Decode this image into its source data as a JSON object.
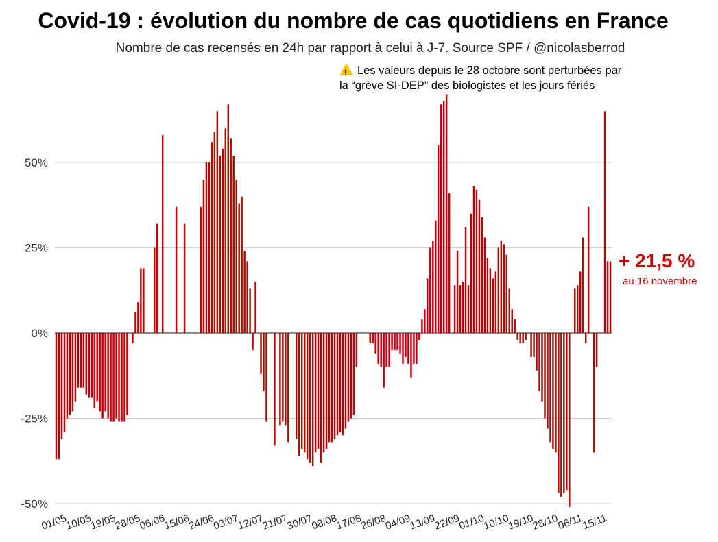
{
  "chart_data": {
    "type": "bar",
    "title": "Covid-19 : évolution du nombre de cas quotidiens en France",
    "subtitle": "Nombre de cas recensés en 24h par rapport à celui à J-7. Source SPF / @nicolasberrod",
    "note_line1": "Les valeurs depuis le 28 octobre sont perturbées par",
    "note_line2": "la “grève SI-DEP” des biologistes et les jours fériés",
    "callout_value": "+ 21,5 %",
    "callout_date": "au 16 novembre",
    "bar_color": "#c00000",
    "ylim": [
      -52,
      70
    ],
    "yticks": [
      50,
      25,
      0,
      -25,
      -50
    ],
    "ytick_labels": [
      "50%",
      "25%",
      "0%",
      "-25%",
      "-50%"
    ],
    "grid": true,
    "x_start": "01/05",
    "x_end": "16/11",
    "xtick_labels": [
      "01/05",
      "10/05",
      "19/05",
      "28/05",
      "06/06",
      "15/06",
      "24/06",
      "03/07",
      "12/07",
      "21/07",
      "30/07",
      "08/08",
      "17/08",
      "26/08",
      "04/09",
      "13/09",
      "22/09",
      "01/10",
      "10/10",
      "19/10",
      "28/10",
      "06/11",
      "15/11"
    ],
    "values": [
      -37,
      -37,
      -31,
      -29,
      -25,
      -24,
      -23,
      -20,
      -16,
      -16,
      -16,
      -18,
      -19,
      -19,
      -22,
      -20,
      -23,
      -25,
      -23,
      -25,
      -26,
      -26,
      -25,
      -26,
      -26,
      -26,
      -24,
      0,
      -3,
      6,
      9,
      19,
      19,
      0,
      0,
      0,
      25,
      32,
      0,
      58,
      0,
      0,
      0,
      0,
      37,
      0,
      0,
      32,
      0,
      0,
      0,
      0,
      0,
      37,
      45,
      50,
      50,
      56,
      59,
      65,
      52,
      54,
      60,
      67,
      57,
      52,
      45,
      38,
      40,
      24,
      21,
      13,
      -5,
      15,
      0,
      -12,
      -17,
      -26,
      0,
      0,
      -33,
      0,
      -27,
      -26,
      -27,
      -32,
      0,
      0,
      -31,
      -36,
      -34,
      -35,
      -37,
      -38,
      -39,
      -35,
      -34,
      -38,
      -35,
      -34,
      -32,
      -32,
      -31,
      -30,
      -29,
      -30,
      -28,
      -26,
      -25,
      -24,
      -10,
      0,
      0,
      0,
      0,
      -3,
      -3,
      -6,
      -9,
      -10,
      -16,
      -10,
      -10,
      -5,
      -5,
      -5,
      -6,
      -9,
      -7,
      -9,
      -13,
      -9,
      -9,
      -2,
      4,
      7,
      16,
      25,
      27,
      33,
      55,
      67,
      68,
      70,
      41,
      0,
      14,
      24,
      14,
      15,
      31,
      14,
      35,
      43,
      42,
      39,
      34,
      28,
      22,
      19,
      16,
      18,
      25,
      27,
      26,
      23,
      13,
      7,
      4,
      -2,
      -3,
      -3,
      -2,
      0,
      -7,
      -7,
      -11,
      -17,
      -20,
      -25,
      -28,
      -32,
      -34,
      -35,
      -47,
      -48,
      -47,
      -46,
      -51,
      0,
      13,
      14,
      18,
      28,
      -3,
      37,
      0,
      -35,
      -10,
      0,
      0,
      65,
      21,
      21
    ]
  }
}
